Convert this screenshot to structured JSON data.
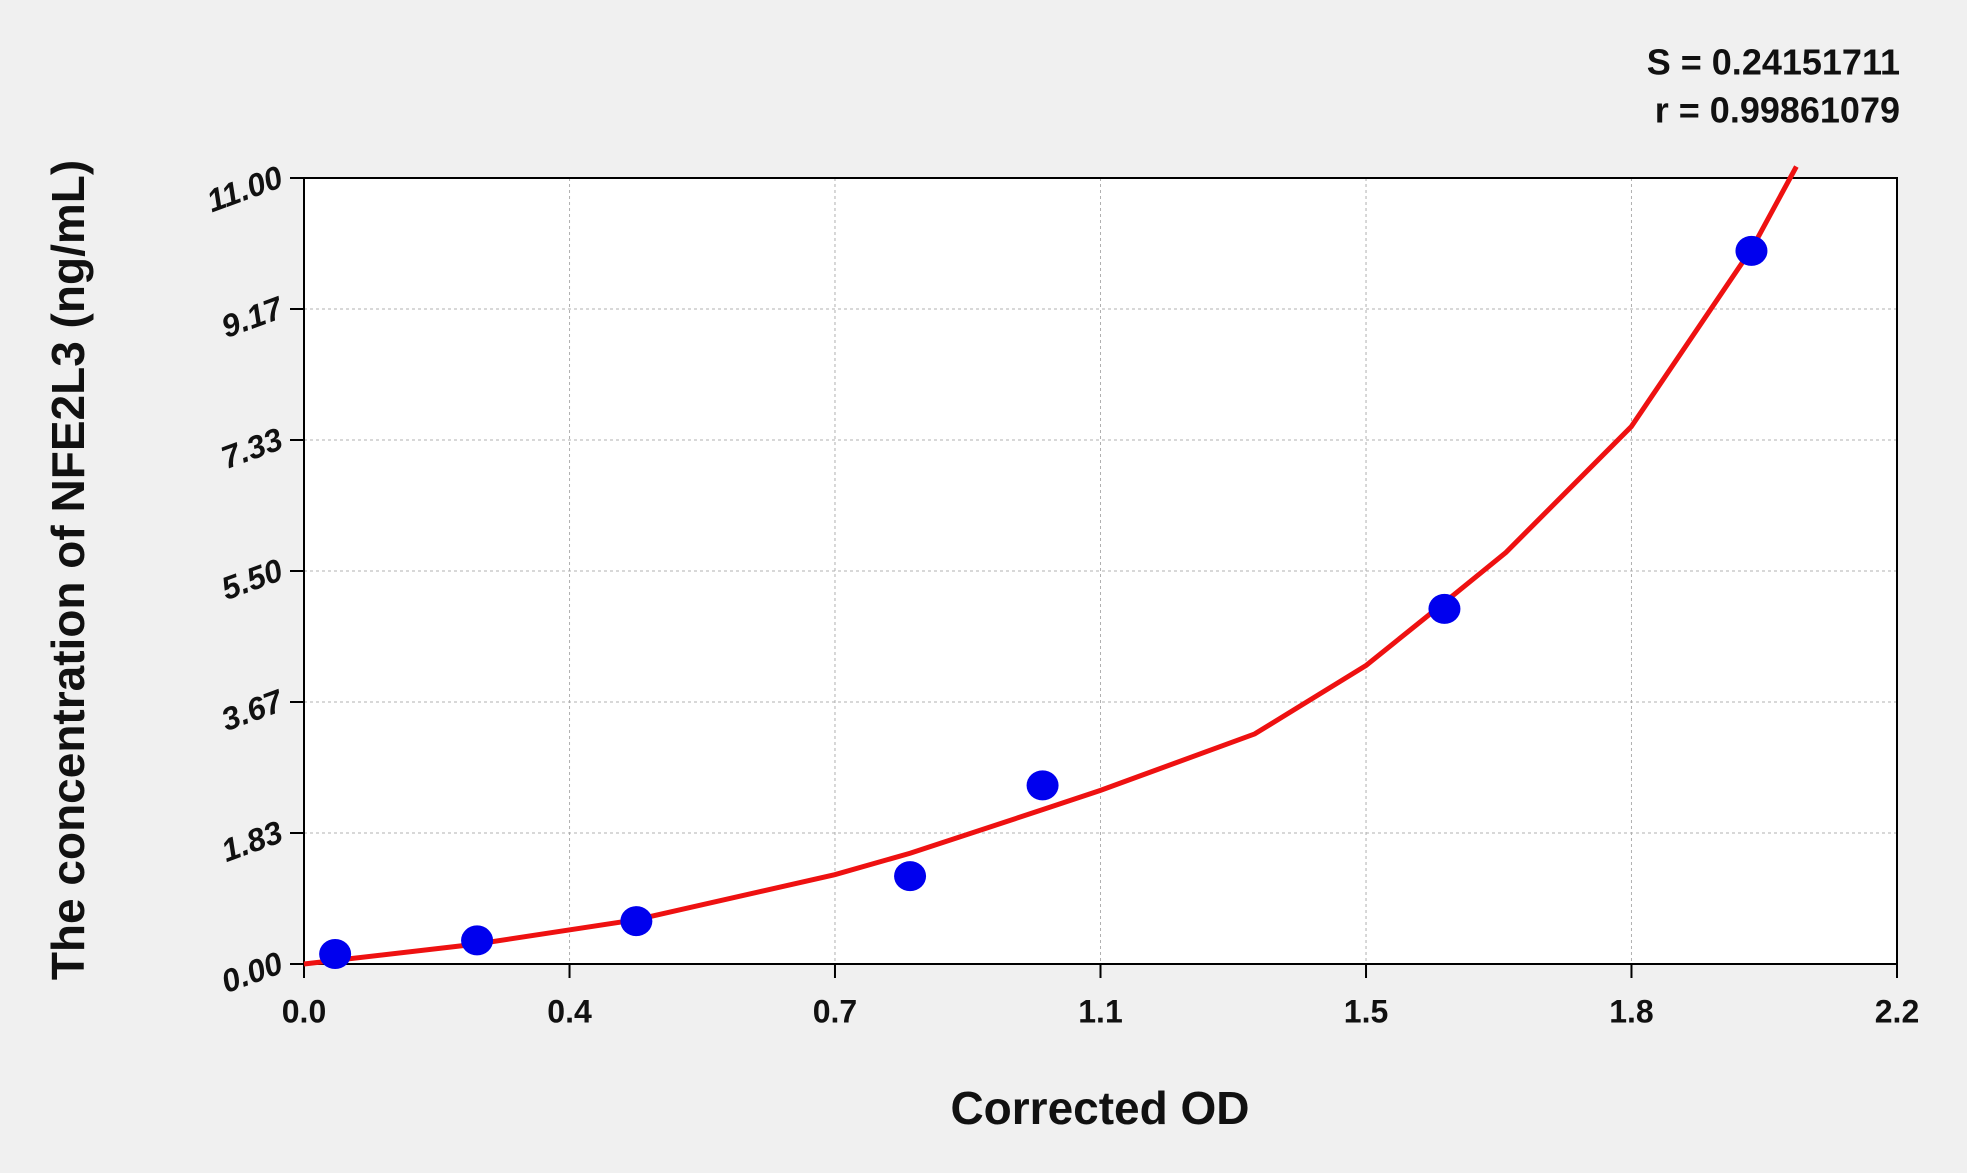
{
  "chart_data": {
    "type": "scatter",
    "annotations": [
      "S = 0.24151711",
      "r = 0.99861079"
    ],
    "x_label": "Corrected OD",
    "y_label": "The concentration of NFE2L3 (ng/mL)",
    "xlim": [
      0,
      2.2
    ],
    "ylim": [
      0,
      11
    ],
    "xticks": [
      {
        "value": 0,
        "label": "0.0"
      },
      {
        "value": 0.3667,
        "label": "0.4"
      },
      {
        "value": 0.7333,
        "label": "0.7"
      },
      1.1,
      {
        "value": 1.4667,
        "label": "1.5"
      },
      {
        "value": 1.8333,
        "label": "1.8"
      },
      2.2
    ],
    "yticks": [
      {
        "value": 0,
        "label": "0.00"
      },
      {
        "value": 1.8333,
        "label": "1.83"
      },
      {
        "value": 3.6667,
        "label": "3.67"
      },
      {
        "value": 5.5,
        "label": "5.50"
      },
      {
        "value": 7.3333,
        "label": "7.33"
      },
      {
        "value": 9.1667,
        "label": "9.17"
      },
      {
        "value": 11,
        "label": "11.00"
      }
    ],
    "grid": true,
    "series": [
      {
        "color": "#0000ee",
        "x": [
          0.043,
          0.239,
          0.459,
          0.837,
          1.02,
          1.575,
          1.999
        ],
        "values": [
          0.14,
          0.33,
          0.6,
          1.23,
          2.5,
          4.97,
          9.98
        ]
      },
      {
        "type": "line",
        "color": "#ee1111",
        "x": [
          0,
          0.239,
          0.459,
          0.733,
          0.837,
          1.02,
          1.1,
          1.313,
          1.467,
          1.575,
          1.66,
          1.833,
          2.0,
          2.061
        ],
        "values": [
          0,
          0.28,
          0.62,
          1.25,
          1.55,
          2.16,
          2.43,
          3.22,
          4.18,
          5.06,
          5.76,
          7.52,
          10.02,
          11.16
        ]
      }
    ]
  }
}
